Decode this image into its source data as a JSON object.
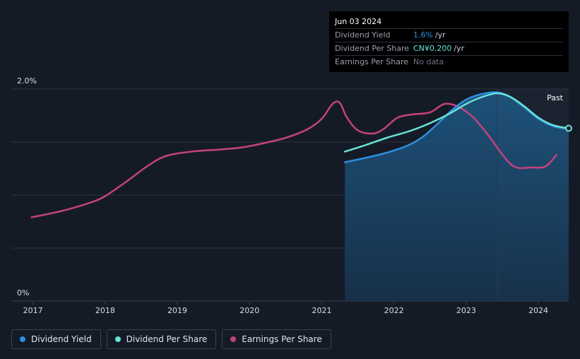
{
  "chart_data": {
    "type": "line",
    "title": "",
    "xlabel": "",
    "ylabel": "",
    "ylim": [
      0,
      2.0
    ],
    "xlim": [
      2016.7,
      2024.42
    ],
    "y_tick_labels": [
      {
        "value": 0,
        "label": "0%"
      },
      {
        "value": 2.0,
        "label": "2.0%"
      }
    ],
    "y_gridlines": [
      0.5,
      1.0,
      1.5,
      2.0
    ],
    "x_ticks": [
      2017,
      2018,
      2019,
      2020,
      2021,
      2022,
      2023,
      2024
    ],
    "x_tick_labels": [
      "2017",
      "2018",
      "2019",
      "2020",
      "2021",
      "2022",
      "2023",
      "2024"
    ],
    "past_label": "Past",
    "past_start_x": 2023.43,
    "series": [
      {
        "name": "Dividend Yield",
        "color": "#2e8fe0",
        "area": true,
        "points": [
          [
            2021.32,
            1.31
          ],
          [
            2021.6,
            1.35
          ],
          [
            2021.9,
            1.4
          ],
          [
            2022.2,
            1.47
          ],
          [
            2022.4,
            1.55
          ],
          [
            2022.6,
            1.67
          ],
          [
            2022.8,
            1.8
          ],
          [
            2023.0,
            1.9
          ],
          [
            2023.2,
            1.95
          ],
          [
            2023.42,
            1.97
          ],
          [
            2023.6,
            1.93
          ],
          [
            2023.8,
            1.83
          ],
          [
            2024.0,
            1.72
          ],
          [
            2024.2,
            1.65
          ],
          [
            2024.42,
            1.62
          ]
        ]
      },
      {
        "name": "Dividend Per Share",
        "color": "#68e3d8",
        "area": false,
        "points": [
          [
            2021.32,
            1.41
          ],
          [
            2021.6,
            1.47
          ],
          [
            2021.9,
            1.54
          ],
          [
            2022.2,
            1.6
          ],
          [
            2022.4,
            1.65
          ],
          [
            2022.6,
            1.71
          ],
          [
            2022.8,
            1.78
          ],
          [
            2023.0,
            1.86
          ],
          [
            2023.2,
            1.92
          ],
          [
            2023.42,
            1.96
          ],
          [
            2023.6,
            1.93
          ],
          [
            2023.8,
            1.84
          ],
          [
            2024.0,
            1.73
          ],
          [
            2024.2,
            1.66
          ],
          [
            2024.42,
            1.63
          ]
        ]
      },
      {
        "name": "Earnings Per Share",
        "color": "#c4427f",
        "area": false,
        "points": [
          [
            2016.98,
            0.79
          ],
          [
            2017.4,
            0.85
          ],
          [
            2017.8,
            0.93
          ],
          [
            2018.0,
            0.99
          ],
          [
            2018.3,
            1.13
          ],
          [
            2018.6,
            1.28
          ],
          [
            2018.85,
            1.37
          ],
          [
            2019.2,
            1.41
          ],
          [
            2019.6,
            1.43
          ],
          [
            2019.9,
            1.45
          ],
          [
            2020.2,
            1.49
          ],
          [
            2020.5,
            1.54
          ],
          [
            2020.8,
            1.62
          ],
          [
            2021.0,
            1.72
          ],
          [
            2021.15,
            1.86
          ],
          [
            2021.25,
            1.87
          ],
          [
            2021.35,
            1.73
          ],
          [
            2021.5,
            1.61
          ],
          [
            2021.7,
            1.58
          ],
          [
            2021.85,
            1.62
          ],
          [
            2022.05,
            1.73
          ],
          [
            2022.25,
            1.76
          ],
          [
            2022.5,
            1.78
          ],
          [
            2022.7,
            1.86
          ],
          [
            2022.9,
            1.83
          ],
          [
            2023.1,
            1.73
          ],
          [
            2023.3,
            1.57
          ],
          [
            2023.55,
            1.34
          ],
          [
            2023.7,
            1.26
          ],
          [
            2023.9,
            1.26
          ],
          [
            2024.1,
            1.27
          ],
          [
            2024.25,
            1.38
          ]
        ]
      }
    ],
    "end_marker": {
      "series": "Dividend Per Share",
      "x": 2024.42,
      "y": 1.63
    }
  },
  "tooltip": {
    "date": "Jun 03 2024",
    "rows": [
      {
        "label": "Dividend Yield",
        "value": "1.6%",
        "unit": "/yr",
        "color": "#2e8fe0"
      },
      {
        "label": "Dividend Per Share",
        "value": "CN¥0.200",
        "unit": "/yr",
        "color": "#68e3d8"
      },
      {
        "label": "Earnings Per Share",
        "value": "No data",
        "unit": "",
        "color": "#6f7683"
      }
    ]
  },
  "legend": [
    {
      "label": "Dividend Yield",
      "color": "#2e8fe0"
    },
    {
      "label": "Dividend Per Share",
      "color": "#68e3d8"
    },
    {
      "label": "Earnings Per Share",
      "color": "#c4427f"
    }
  ]
}
